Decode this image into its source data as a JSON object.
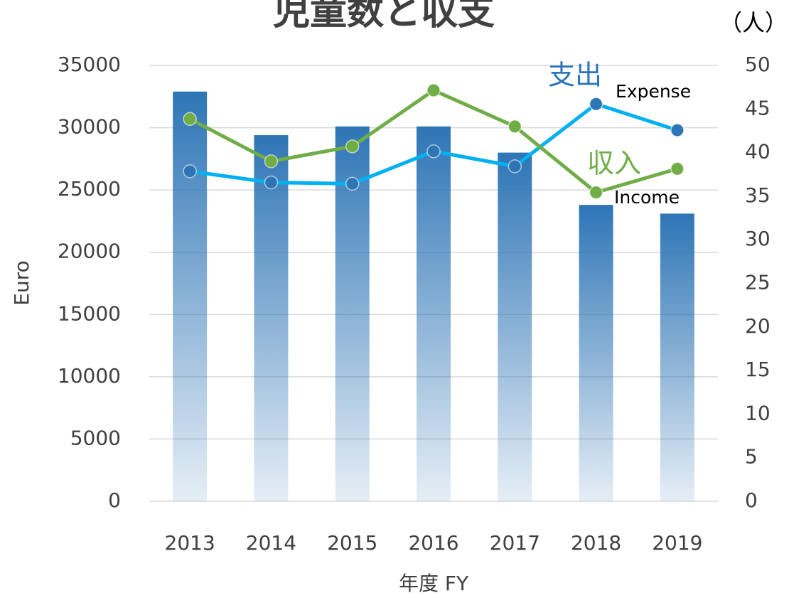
{
  "chart_data": {
    "type": "combo",
    "title": "児童数と収支",
    "x_label": "年度 FY",
    "y_label": "Euro",
    "y2_label": "（人）",
    "categories": [
      "2013",
      "2014",
      "2015",
      "2016",
      "2017",
      "2018",
      "2019"
    ],
    "ylim": [
      0,
      35000
    ],
    "yticks": [
      0,
      5000,
      10000,
      15000,
      20000,
      25000,
      30000,
      35000
    ],
    "y2lim": [
      0,
      50
    ],
    "y2ticks": [
      0,
      5,
      10,
      15,
      20,
      25,
      30,
      35,
      40,
      45,
      50
    ],
    "grid": true,
    "series": [
      {
        "type": "bar",
        "axis": "y2",
        "color": "#2e75b6",
        "values": [
          47,
          42,
          43,
          43,
          40,
          34,
          33
        ]
      },
      {
        "type": "line",
        "color": "#00b0f0",
        "marker_color": "#2e75b6",
        "values": [
          26500,
          25600,
          25500,
          28100,
          26900,
          31900,
          29800
        ]
      },
      {
        "type": "line",
        "color": "#70ad47",
        "marker_color": "#70ad47",
        "values": [
          30700,
          27300,
          28500,
          33000,
          30100,
          24800,
          26700
        ]
      }
    ],
    "annotations": [
      {
        "text": "支出",
        "color": "#2e75b6"
      },
      {
        "text": "Expense",
        "color": "#000000"
      },
      {
        "text": "収入",
        "color": "#70ad47"
      },
      {
        "text": "Income",
        "color": "#000000"
      }
    ]
  }
}
